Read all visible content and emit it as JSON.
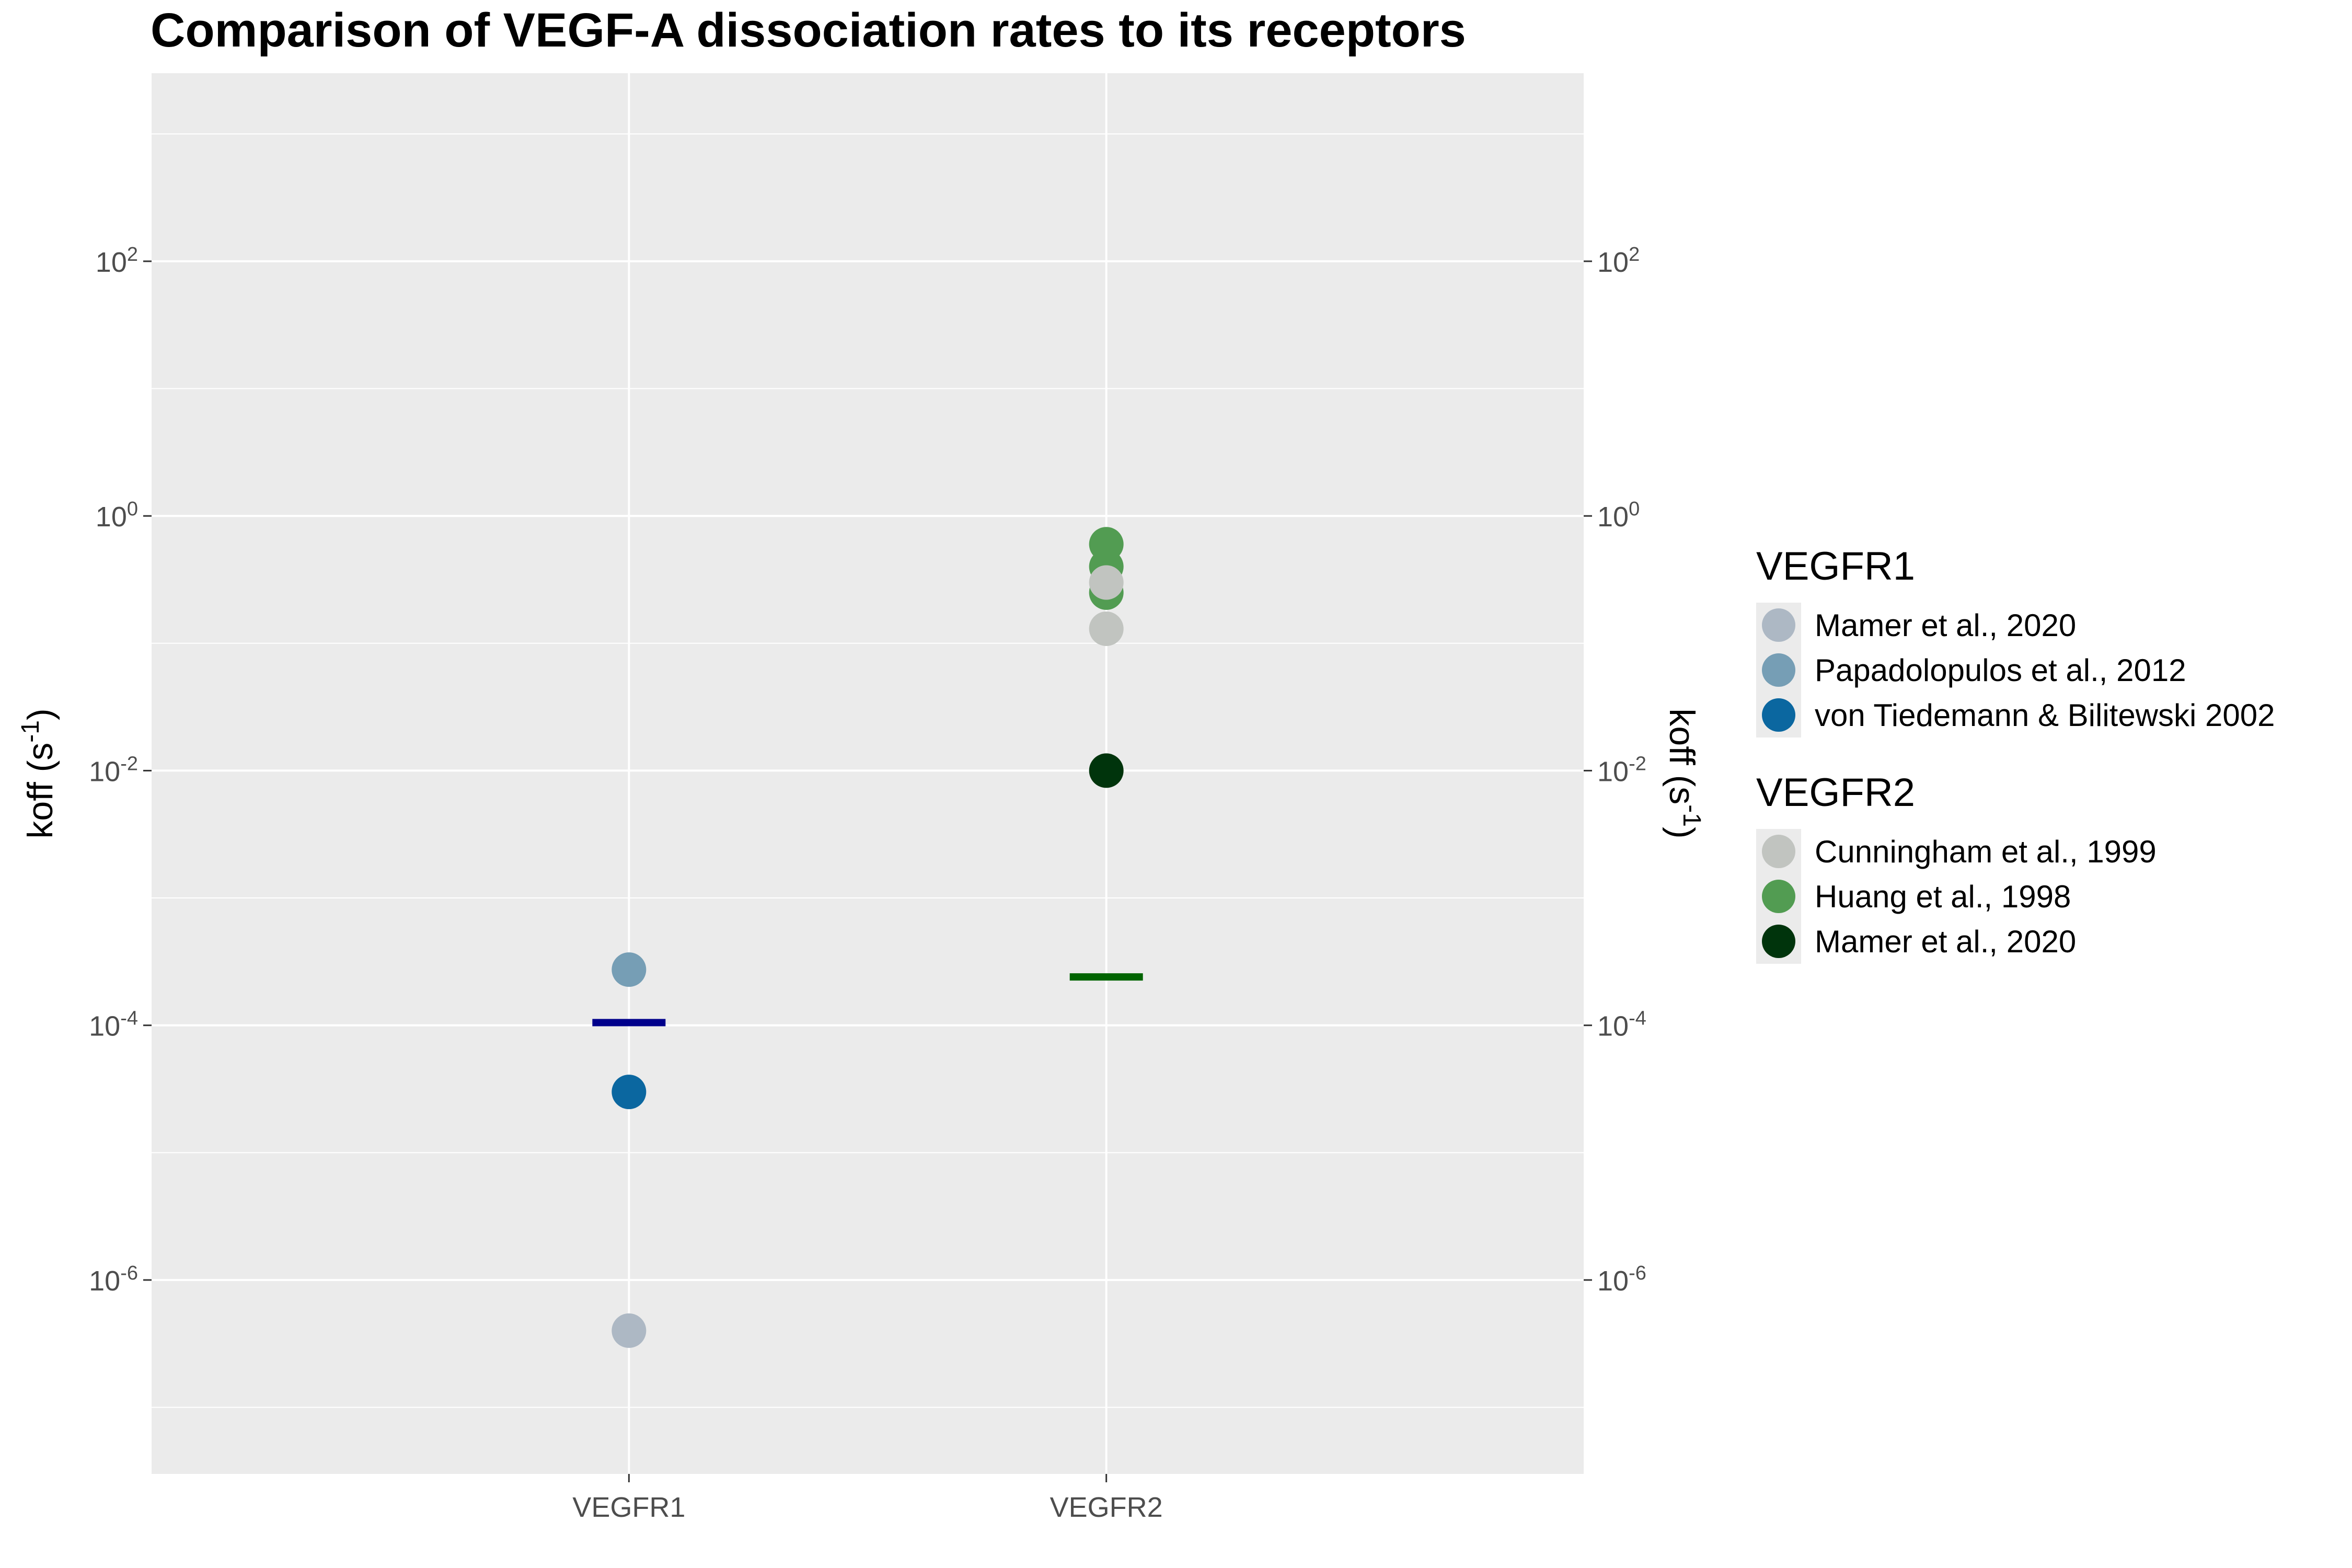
{
  "chart_data": {
    "type": "scatter",
    "title": "Comparison of VEGF-A dissociation rates to its receptors",
    "ylabel": "koff",
    "ylabel_unit_base": "s",
    "ylabel_unit_exp": "-1",
    "yscale": "log10",
    "ylim": [
      3e-08,
      3000
    ],
    "y_ticks": [
      {
        "value": 1e-06,
        "base": "10",
        "exp": "-6"
      },
      {
        "value": 0.0001,
        "base": "10",
        "exp": "-4"
      },
      {
        "value": 0.01,
        "base": "10",
        "exp": "-2"
      },
      {
        "value": 1,
        "base": "10",
        "exp": "0"
      },
      {
        "value": 100,
        "base": "10",
        "exp": "2"
      }
    ],
    "categories": [
      "VEGFR1",
      "VEGFR2"
    ],
    "grid": true,
    "secondary_y_axis": true,
    "legend_position": "right",
    "points": [
      {
        "category": "VEGFR1",
        "y": 0.0002737,
        "group": "VEGFR1",
        "source": "Papadolopulos et al., 2012",
        "color": "#769eb5"
      },
      {
        "category": "VEGFR1",
        "y": 3e-05,
        "group": "VEGFR1",
        "source": "von Tiedemann & Bilitewski 2002",
        "color": "#0b67a0"
      },
      {
        "category": "VEGFR1",
        "y": 4e-07,
        "group": "VEGFR1",
        "source": "Mamer et al., 2020",
        "color": "#adb8c4"
      },
      {
        "category": "VEGFR2",
        "y": 0.6,
        "group": "VEGFR2",
        "source": "Huang et al., 1998",
        "color": "#529c52"
      },
      {
        "category": "VEGFR2",
        "y": 0.4,
        "group": "VEGFR2",
        "source": "Huang et al., 1998",
        "color": "#529c52"
      },
      {
        "category": "VEGFR2",
        "y": 0.25,
        "group": "VEGFR2",
        "source": "Huang et al., 1998",
        "color": "#529c52"
      },
      {
        "category": "VEGFR2",
        "y": 0.3,
        "group": "VEGFR2",
        "source": "Cunningham et al., 1999",
        "color": "#c1c4c0"
      },
      {
        "category": "VEGFR2",
        "y": 0.13,
        "group": "VEGFR2",
        "source": "Cunningham et al., 1999",
        "color": "#c1c4c0"
      },
      {
        "category": "VEGFR2",
        "y": 0.01,
        "group": "VEGFR2",
        "source": "Mamer et al., 2020",
        "color": "#00340c"
      }
    ],
    "summary_lines": [
      {
        "category": "VEGFR1",
        "y": 0.000105,
        "color": "#00008b"
      },
      {
        "category": "VEGFR2",
        "y": 0.00024,
        "color": "#006400"
      }
    ],
    "legend": [
      {
        "title": "VEGFR1",
        "items": [
          {
            "label": "Mamer et al., 2020",
            "color": "#adb8c4"
          },
          {
            "label": "Papadolopulos et al., 2012",
            "color": "#769eb5"
          },
          {
            "label": "von Tiedemann & Bilitewski 2002",
            "color": "#0b67a0"
          }
        ]
      },
      {
        "title": "VEGFR2",
        "items": [
          {
            "label": "Cunningham et al., 1999",
            "color": "#c1c4c0"
          },
          {
            "label": "Huang et al., 1998",
            "color": "#529c52"
          },
          {
            "label": "Mamer et al., 2020",
            "color": "#00340c"
          }
        ]
      }
    ],
    "colors": {
      "panel_bg": "#ebebeb",
      "grid": "#ffffff",
      "tick_text": "#4d4d4d"
    }
  }
}
